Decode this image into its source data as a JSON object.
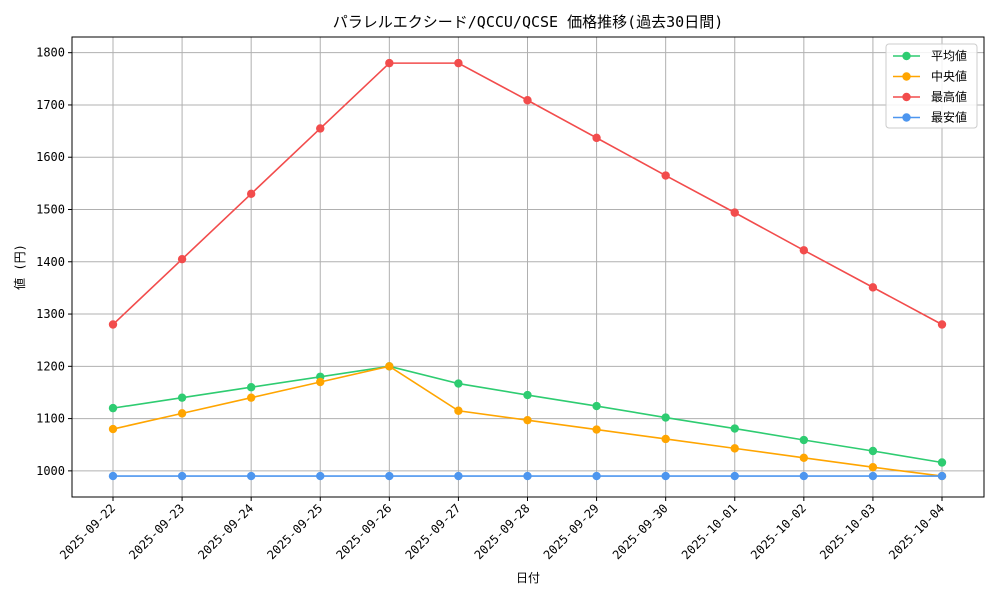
{
  "chart_data": {
    "type": "line",
    "title": "パラレルエクシード/QCCU/QCSE 価格推移(過去30日間)",
    "xlabel": "日付",
    "ylabel": "値 (円)",
    "ylim": [
      950,
      1830
    ],
    "yticks": [
      1000,
      1100,
      1200,
      1300,
      1400,
      1500,
      1600,
      1700,
      1800
    ],
    "grid": true,
    "legend_position": "top-right",
    "categories": [
      "2025-09-22",
      "2025-09-23",
      "2025-09-24",
      "2025-09-25",
      "2025-09-26",
      "2025-09-27",
      "2025-09-28",
      "2025-09-29",
      "2025-09-30",
      "2025-10-01",
      "2025-10-02",
      "2025-10-03",
      "2025-10-04"
    ],
    "series": [
      {
        "name": "平均値",
        "color": "#2ecc71",
        "values": [
          1120,
          1140,
          1160,
          1180,
          1200,
          1167,
          1145,
          1124,
          1102,
          1081,
          1059,
          1038,
          1016
        ]
      },
      {
        "name": "中央値",
        "color": "#ffa500",
        "values": [
          1080,
          1110,
          1140,
          1170,
          1200,
          1115,
          1097,
          1079,
          1061,
          1043,
          1025,
          1007,
          990
        ]
      },
      {
        "name": "最高値",
        "color": "#f24c4c",
        "values": [
          1280,
          1405,
          1530,
          1655,
          1780,
          1780,
          1709,
          1637,
          1565,
          1494,
          1422,
          1351,
          1280
        ]
      },
      {
        "name": "最安値",
        "color": "#4d96ef",
        "values": [
          990,
          990,
          990,
          990,
          990,
          990,
          990,
          990,
          990,
          990,
          990,
          990,
          990
        ]
      }
    ]
  }
}
